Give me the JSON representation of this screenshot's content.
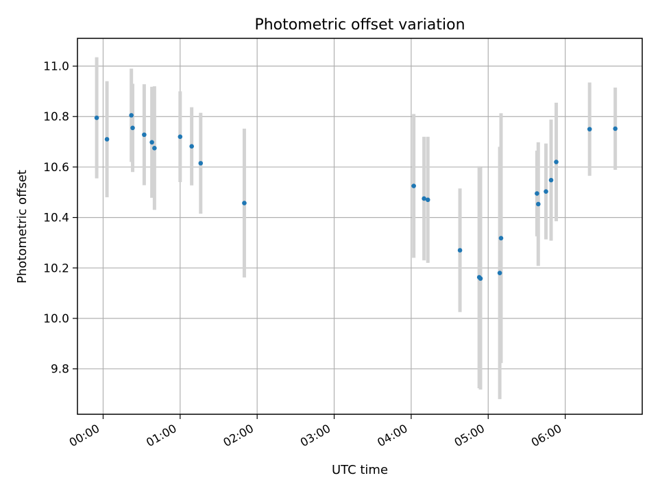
{
  "chart_data": {
    "type": "scatter",
    "title": "Photometric offset variation",
    "xlabel": "UTC time",
    "ylabel": "Photometric offset",
    "x_unit": "hours UTC",
    "xlim": [
      "-00:20",
      "07:00"
    ],
    "ylim": [
      9.62,
      11.11
    ],
    "x_ticks": [
      "00:00",
      "01:00",
      "02:00",
      "03:00",
      "04:00",
      "05:00",
      "06:00"
    ],
    "y_ticks": [
      "9.8",
      "10.0",
      "10.2",
      "10.4",
      "10.6",
      "10.8",
      "11.0"
    ],
    "grid": true,
    "colors": {
      "point": "#1f77b4",
      "errorbar": "#d3d3d3",
      "grid": "#b0b0b0",
      "axes": "#000000"
    },
    "points": [
      {
        "t": "-00:05",
        "y": 10.795,
        "err": 0.24
      },
      {
        "t": "00:03",
        "y": 10.71,
        "err": 0.23
      },
      {
        "t": "00:22",
        "y": 10.805,
        "err": 0.185
      },
      {
        "t": "00:23",
        "y": 10.755,
        "err": 0.175
      },
      {
        "t": "00:32",
        "y": 10.728,
        "err": 0.2
      },
      {
        "t": "00:38",
        "y": 10.698,
        "err": 0.22
      },
      {
        "t": "00:40",
        "y": 10.675,
        "err": 0.245
      },
      {
        "t": "01:00",
        "y": 10.72,
        "err": 0.18
      },
      {
        "t": "01:09",
        "y": 10.682,
        "err": 0.155
      },
      {
        "t": "01:16",
        "y": 10.615,
        "err": 0.2
      },
      {
        "t": "01:50",
        "y": 10.457,
        "err": 0.295
      },
      {
        "t": "04:02",
        "y": 10.525,
        "err": 0.285
      },
      {
        "t": "04:10",
        "y": 10.475,
        "err": 0.245
      },
      {
        "t": "04:13",
        "y": 10.47,
        "err": 0.25
      },
      {
        "t": "04:38",
        "y": 10.27,
        "err": 0.245
      },
      {
        "t": "04:53",
        "y": 10.163,
        "err": 0.44
      },
      {
        "t": "04:54",
        "y": 10.158,
        "err": 0.44
      },
      {
        "t": "05:09",
        "y": 10.18,
        "err": 0.5
      },
      {
        "t": "05:10",
        "y": 10.318,
        "err": 0.495
      },
      {
        "t": "05:38",
        "y": 10.495,
        "err": 0.17
      },
      {
        "t": "05:39",
        "y": 10.453,
        "err": 0.245
      },
      {
        "t": "05:45",
        "y": 10.503,
        "err": 0.19
      },
      {
        "t": "05:49",
        "y": 10.548,
        "err": 0.24
      },
      {
        "t": "05:53",
        "y": 10.62,
        "err": 0.235
      },
      {
        "t": "06:19",
        "y": 10.75,
        "err": 0.185
      },
      {
        "t": "06:39",
        "y": 10.752,
        "err": 0.163
      }
    ]
  }
}
